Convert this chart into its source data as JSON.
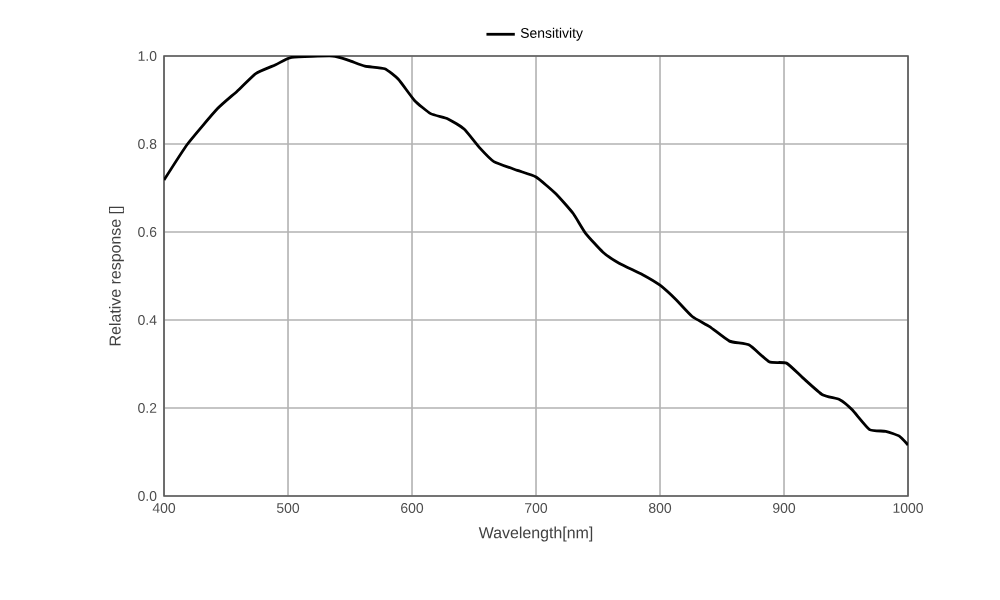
{
  "chart_data": {
    "type": "line",
    "xlabel": "Wavelength[nm]",
    "ylabel": "Relative response []",
    "xlim": [
      400,
      1000
    ],
    "xticks": [
      400,
      500,
      600,
      700,
      800,
      900,
      1000
    ],
    "ylim": [
      0.0,
      1.0
    ],
    "yticks": [
      {
        "value": 0,
        "label": "0.0"
      },
      {
        "value": 0.2,
        "label": "0.2"
      },
      {
        "value": 0.4,
        "label": "0.4"
      },
      {
        "value": 0.6,
        "label": "0.6"
      },
      {
        "value": 0.8,
        "label": "0.8"
      },
      {
        "value": 1.0,
        "label": "1.0"
      }
    ],
    "grid": true,
    "legend": "top",
    "line_style": "solid",
    "x": [
      400,
      419,
      443,
      459,
      474,
      490,
      503,
      536,
      549,
      562,
      578,
      589,
      602,
      615,
      629,
      642,
      655,
      666,
      685,
      700,
      716,
      730,
      740,
      754,
      767,
      786,
      800,
      813,
      826,
      840,
      856,
      872,
      888,
      902,
      915,
      931,
      945,
      955,
      969,
      982,
      993,
      1000
    ],
    "series": [
      {
        "name": "Sensitivity",
        "color": "#000000",
        "values": [
          0.718,
          0.8,
          0.88,
          0.92,
          0.96,
          0.98,
          0.997,
          1.0,
          0.99,
          0.977,
          0.971,
          0.947,
          0.899,
          0.869,
          0.857,
          0.834,
          0.79,
          0.76,
          0.74,
          0.725,
          0.687,
          0.642,
          0.597,
          0.554,
          0.529,
          0.503,
          0.479,
          0.446,
          0.408,
          0.385,
          0.352,
          0.343,
          0.305,
          0.302,
          0.269,
          0.23,
          0.219,
          0.196,
          0.151,
          0.147,
          0.136,
          0.116
        ]
      }
    ]
  }
}
